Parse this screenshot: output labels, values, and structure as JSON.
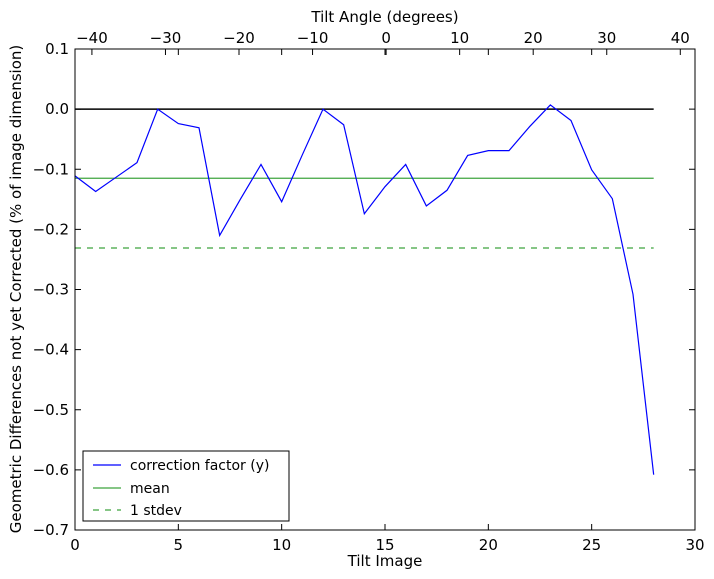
{
  "chart_data": {
    "type": "line",
    "xlabel": "Tilt Image",
    "ylabel": "Geometric Differences not yet Corrected (% of image dimension)",
    "top_xlabel": "Tilt Angle (degrees)",
    "xlim": [
      0,
      30
    ],
    "ylim": [
      -0.7,
      0.1
    ],
    "top_xlim": [
      -42.3,
      42
    ],
    "x_ticks": [
      0,
      5,
      10,
      15,
      20,
      25,
      30
    ],
    "y_ticks": [
      -0.7,
      -0.6,
      -0.5,
      -0.4,
      -0.3,
      -0.2,
      -0.1,
      0.0,
      0.1
    ],
    "top_ticks": [
      -40,
      -30,
      -20,
      -10,
      0,
      10,
      20,
      30,
      40
    ],
    "x_tick_labels": [
      "0",
      "5",
      "10",
      "15",
      "20",
      "25",
      "30"
    ],
    "y_tick_labels": [
      "−0.7",
      "−0.6",
      "−0.5",
      "−0.4",
      "−0.3",
      "−0.2",
      "−0.1",
      "0.0",
      "0.1"
    ],
    "top_tick_labels": [
      "−40",
      "−30",
      "−20",
      "−10",
      "0",
      "10",
      "20",
      "30",
      "40"
    ],
    "grid": false,
    "legend_position": "lower-left",
    "series": [
      {
        "name": "correction factor (y)",
        "color": "#0000ff",
        "style": "solid",
        "x": [
          0,
          1,
          2,
          3,
          4,
          5,
          6,
          7,
          8,
          9,
          10,
          11,
          12,
          13,
          14,
          15,
          16,
          17,
          18,
          19,
          20,
          21,
          22,
          23,
          24,
          25,
          26,
          27,
          28
        ],
        "y": [
          -0.111,
          -0.137,
          -0.113,
          -0.089,
          0.0,
          -0.024,
          -0.031,
          -0.21,
          -0.15,
          -0.092,
          -0.154,
          -0.076,
          0.0,
          -0.026,
          -0.174,
          -0.129,
          -0.092,
          -0.161,
          -0.135,
          -0.077,
          -0.069,
          -0.069,
          -0.029,
          0.007,
          -0.019,
          -0.101,
          -0.149,
          -0.308,
          -0.608
        ]
      },
      {
        "name": "mean",
        "color": "#3fa43f",
        "style": "solid",
        "x": [
          0,
          28
        ],
        "y": [
          -0.115,
          -0.115
        ]
      },
      {
        "name": "1 stdev",
        "color": "#3fa43f",
        "style": "dashed",
        "x": [
          0,
          28
        ],
        "y": [
          -0.231,
          -0.231
        ]
      },
      {
        "name": "",
        "color": "#000000",
        "style": "solid",
        "x": [
          0,
          28
        ],
        "y": [
          0.0,
          0.0
        ]
      }
    ]
  }
}
